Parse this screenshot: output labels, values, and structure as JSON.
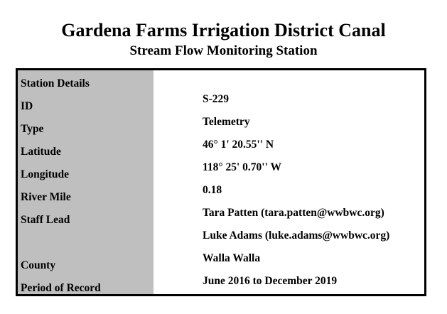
{
  "header": {
    "title": "Gardena Farms Irrigation District Canal",
    "subtitle": "Stream Flow Monitoring Station"
  },
  "table": {
    "rows": [
      {
        "label": "Station Details"
      },
      {
        "label": "ID",
        "value": "S-229"
      },
      {
        "label": "Type",
        "value": "Telemetry"
      },
      {
        "label": "Latitude",
        "value": "46° 1' 20.55'' N"
      },
      {
        "label": "Longitude",
        "value": "118° 25' 0.70'' W"
      },
      {
        "label": "River Mile",
        "value": "0.18"
      },
      {
        "label": "Staff Lead",
        "value": "Tara Patten (tara.patten@wwbwc.org)"
      },
      {
        "value": "Luke Adams (luke.adams@wwbwc.org)"
      },
      {
        "label": "County",
        "value": "Walla Walla"
      },
      {
        "label": "Period of Record",
        "value": "June 2016 to December 2019"
      }
    ]
  }
}
